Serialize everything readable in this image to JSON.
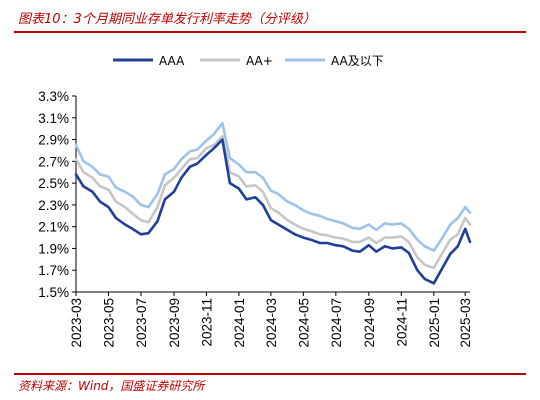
{
  "title": "图表10：3个月期同业存单发行利率走势（分评级）",
  "source": "资料来源：Wind，国盛证券研究所",
  "colors": {
    "title": "#c00000",
    "AAA": "#1f3f99",
    "AA+": "#c6c6c6",
    "AA及以下": "#9fc2e9"
  },
  "chart_data": {
    "type": "line",
    "ylim": [
      1.5,
      3.3
    ],
    "y_ticks": [
      "3.3%",
      "3.1%",
      "2.9%",
      "2.7%",
      "2.5%",
      "2.3%",
      "2.1%",
      "1.9%",
      "1.7%",
      "1.5%"
    ],
    "x_ticks": [
      "2023-03",
      "2023-05",
      "2023-07",
      "2023-09",
      "2023-11",
      "2024-01",
      "2024-03",
      "2024-05",
      "2024-07",
      "2024-09",
      "2024-11",
      "2025-01",
      "2025-03"
    ],
    "grid": false,
    "legend_position": "top",
    "x": [
      "2023-03-01",
      "2023-03-15",
      "2023-04-01",
      "2023-04-15",
      "2023-05-01",
      "2023-05-15",
      "2023-06-01",
      "2023-06-15",
      "2023-07-01",
      "2023-07-15",
      "2023-08-01",
      "2023-08-15",
      "2023-09-01",
      "2023-09-15",
      "2023-10-01",
      "2023-10-15",
      "2023-11-01",
      "2023-11-15",
      "2023-12-01",
      "2023-12-15",
      "2024-01-01",
      "2024-01-15",
      "2024-02-01",
      "2024-02-15",
      "2024-03-01",
      "2024-03-15",
      "2024-04-01",
      "2024-04-15",
      "2024-05-01",
      "2024-05-15",
      "2024-06-01",
      "2024-06-15",
      "2024-07-01",
      "2024-07-15",
      "2024-08-01",
      "2024-08-15",
      "2024-09-01",
      "2024-09-15",
      "2024-10-01",
      "2024-10-15",
      "2024-11-01",
      "2024-11-15",
      "2024-12-01",
      "2024-12-15",
      "2025-01-01",
      "2025-01-15",
      "2025-02-01",
      "2025-02-15",
      "2025-03-01",
      "2025-03-10"
    ],
    "series": [
      {
        "name": "AAA",
        "values": [
          2.58,
          2.47,
          2.42,
          2.33,
          2.28,
          2.18,
          2.12,
          2.08,
          2.03,
          2.04,
          2.15,
          2.35,
          2.42,
          2.55,
          2.65,
          2.68,
          2.76,
          2.82,
          2.9,
          2.5,
          2.45,
          2.35,
          2.37,
          2.3,
          2.16,
          2.12,
          2.07,
          2.03,
          2.0,
          1.98,
          1.95,
          1.95,
          1.93,
          1.92,
          1.88,
          1.87,
          1.93,
          1.87,
          1.92,
          1.9,
          1.91,
          1.86,
          1.7,
          1.62,
          1.58,
          1.7,
          1.85,
          1.92,
          2.08,
          1.96
        ]
      },
      {
        "name": "AA+",
        "values": [
          2.72,
          2.6,
          2.55,
          2.47,
          2.44,
          2.33,
          2.28,
          2.22,
          2.16,
          2.14,
          2.28,
          2.48,
          2.55,
          2.63,
          2.72,
          2.73,
          2.82,
          2.85,
          2.93,
          2.6,
          2.56,
          2.47,
          2.48,
          2.42,
          2.27,
          2.23,
          2.16,
          2.12,
          2.08,
          2.06,
          2.03,
          2.02,
          2.0,
          1.99,
          1.96,
          1.96,
          2.0,
          1.95,
          2.0,
          2.0,
          2.01,
          1.96,
          1.82,
          1.75,
          1.72,
          1.84,
          1.98,
          2.03,
          2.18,
          2.12
        ]
      },
      {
        "name": "AA及以下",
        "values": [
          2.85,
          2.7,
          2.65,
          2.58,
          2.56,
          2.46,
          2.42,
          2.38,
          2.3,
          2.28,
          2.4,
          2.58,
          2.63,
          2.72,
          2.79,
          2.81,
          2.89,
          2.95,
          3.05,
          2.73,
          2.67,
          2.6,
          2.6,
          2.55,
          2.43,
          2.4,
          2.33,
          2.3,
          2.25,
          2.22,
          2.2,
          2.17,
          2.15,
          2.13,
          2.09,
          2.08,
          2.12,
          2.07,
          2.13,
          2.12,
          2.13,
          2.08,
          1.98,
          1.92,
          1.88,
          1.98,
          2.12,
          2.18,
          2.28,
          2.23
        ]
      }
    ]
  }
}
